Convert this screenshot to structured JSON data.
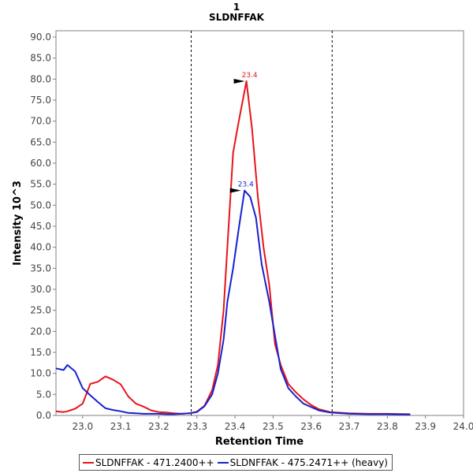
{
  "chart_data": {
    "type": "line",
    "title": "1",
    "subtitle": "SLDNFFAK",
    "xlabel": "Retention Time",
    "ylabel": "Intensity 10^3",
    "xlim": [
      22.93,
      24.0
    ],
    "ylim": [
      0,
      91.5
    ],
    "x_ticks": [
      "23.0",
      "23.1",
      "23.2",
      "23.3",
      "23.4",
      "23.5",
      "23.6",
      "23.7",
      "23.8",
      "23.9",
      "24.0"
    ],
    "y_ticks": [
      "0.0",
      "5.0",
      "10.0",
      "15.0",
      "20.0",
      "25.0",
      "30.0",
      "35.0",
      "40.0",
      "45.0",
      "50.0",
      "55.0",
      "60.0",
      "65.0",
      "70.0",
      "75.0",
      "80.0",
      "85.0",
      "90.0"
    ],
    "grid": false,
    "legend_position": "bottom",
    "integration_bounds": [
      23.285,
      23.655
    ],
    "series": [
      {
        "name": "SLDNFFAK - 471.2400++",
        "color": "#e8141b",
        "x": [
          22.93,
          22.95,
          22.96,
          22.98,
          23.0,
          23.02,
          23.04,
          23.06,
          23.08,
          23.1,
          23.12,
          23.14,
          23.16,
          23.18,
          23.2,
          23.22,
          23.24,
          23.26,
          23.28,
          23.3,
          23.32,
          23.34,
          23.355,
          23.37,
          23.38,
          23.395,
          23.41,
          23.43,
          23.445,
          23.46,
          23.475,
          23.49,
          23.505,
          23.52,
          23.54,
          23.56,
          23.58,
          23.6,
          23.62,
          23.65,
          23.7,
          23.75,
          23.8,
          23.86
        ],
        "values": [
          1.0,
          0.8,
          1.0,
          1.6,
          2.8,
          7.5,
          8.0,
          9.3,
          8.5,
          7.4,
          4.5,
          2.8,
          2.1,
          1.2,
          0.8,
          0.7,
          0.5,
          0.4,
          0.5,
          0.9,
          2.3,
          6.0,
          12.0,
          25.0,
          40.0,
          62.5,
          70.0,
          79.5,
          68.0,
          52.0,
          40.0,
          31.0,
          17.0,
          12.0,
          7.5,
          5.5,
          3.8,
          2.5,
          1.5,
          0.8,
          0.5,
          0.4,
          0.4,
          0.3
        ]
      },
      {
        "name": "SLDNFFAK - 475.2471++ (heavy)",
        "color": "#1722cc",
        "x": [
          22.93,
          22.95,
          22.96,
          22.98,
          23.0,
          23.02,
          23.04,
          23.06,
          23.08,
          23.1,
          23.12,
          23.14,
          23.16,
          23.18,
          23.2,
          23.22,
          23.24,
          23.26,
          23.28,
          23.3,
          23.32,
          23.34,
          23.355,
          23.37,
          23.38,
          23.395,
          23.41,
          23.425,
          23.44,
          23.455,
          23.47,
          23.49,
          23.505,
          23.52,
          23.54,
          23.56,
          23.58,
          23.6,
          23.62,
          23.65,
          23.7,
          23.75,
          23.8,
          23.86
        ],
        "values": [
          11.2,
          10.8,
          12.0,
          10.5,
          6.5,
          4.8,
          3.2,
          1.7,
          1.3,
          1.0,
          0.6,
          0.5,
          0.4,
          0.4,
          0.4,
          0.3,
          0.3,
          0.4,
          0.5,
          0.8,
          2.2,
          5.0,
          10.0,
          18.0,
          27.0,
          35.0,
          44.5,
          53.5,
          52.0,
          47.0,
          36.0,
          27.0,
          19.0,
          11.0,
          6.5,
          4.5,
          2.8,
          2.0,
          1.2,
          0.7,
          0.4,
          0.3,
          0.3,
          0.2
        ]
      }
    ],
    "annotations": [
      {
        "text": "23.4",
        "series": 0,
        "x": 23.43,
        "y": 79.5
      },
      {
        "text": "23.4",
        "series": 1,
        "x": 23.42,
        "y": 53.5
      }
    ]
  }
}
